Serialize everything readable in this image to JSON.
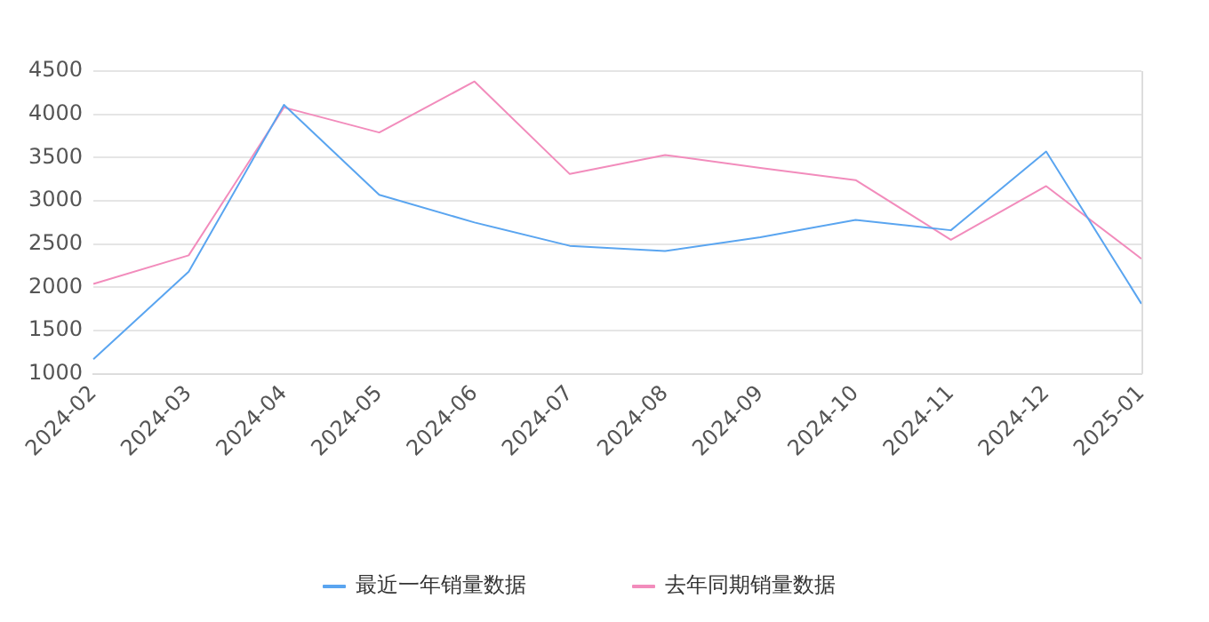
{
  "chart_data": {
    "type": "line",
    "categories": [
      "2024-02",
      "2024-03",
      "2024-04",
      "2024-05",
      "2024-06",
      "2024-07",
      "2024-08",
      "2024-09",
      "2024-10",
      "2024-11",
      "2024-12",
      "2025-01"
    ],
    "series": [
      {
        "name": "最近一年销量数据",
        "color": "#5aa5f0",
        "values": [
          1170,
          2180,
          4110,
          3070,
          2750,
          2480,
          2420,
          2580,
          2780,
          2660,
          3570,
          1810
        ]
      },
      {
        "name": "去年同期销量数据",
        "color": "#f28cbc",
        "values": [
          2040,
          2370,
          4080,
          3790,
          4380,
          3310,
          3530,
          3380,
          3240,
          2550,
          3170,
          2330
        ]
      }
    ],
    "ylim": [
      1000,
      4500
    ],
    "yticks": [
      1000,
      1500,
      2000,
      2500,
      3000,
      3500,
      4000,
      4500
    ],
    "grid": "y",
    "legend": "bottom",
    "marker": "none",
    "line_style": "solid"
  }
}
